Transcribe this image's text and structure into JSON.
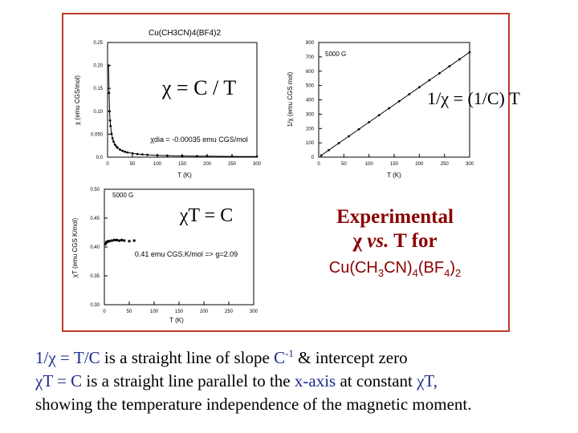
{
  "chart_data": [
    {
      "type": "scatter",
      "title": "Cu(CH3CN)4(BF4)2",
      "xlabel": "T (K)",
      "ylabel": "χ (emu CGS/mol)",
      "xlim": [
        0,
        300
      ],
      "ylim": [
        0,
        0.25
      ],
      "xticks": [
        "0",
        "50",
        "100",
        "150",
        "200",
        "250",
        "300"
      ],
      "yticks": [
        "0.0",
        "0.050",
        "0.10",
        "0.15",
        "0.20",
        "0.25"
      ],
      "formula": "χ = C / T",
      "annotation": "χdia = -0.00035 emu CGS/mol",
      "x": [
        2,
        3,
        4,
        5,
        6,
        8,
        10,
        12,
        15,
        18,
        20,
        25,
        30,
        35,
        40,
        50,
        60,
        70,
        80,
        100,
        120,
        150,
        180,
        200,
        250,
        300
      ],
      "y": [
        0.2,
        0.14,
        0.1,
        0.08,
        0.068,
        0.051,
        0.041,
        0.034,
        0.027,
        0.023,
        0.0205,
        0.0164,
        0.0137,
        0.0117,
        0.0103,
        0.0082,
        0.0068,
        0.0059,
        0.0051,
        0.0041,
        0.0034,
        0.0027,
        0.0023,
        0.0021,
        0.0016,
        0.0014
      ]
    },
    {
      "type": "scatter",
      "xlabel": "T (K)",
      "ylabel": "1/χ (emu CGS mol)",
      "legend": "5000 G",
      "xlim": [
        0,
        300
      ],
      "ylim": [
        0,
        800
      ],
      "xticks": [
        "0",
        "50",
        "100",
        "150",
        "200",
        "250",
        "300"
      ],
      "yticks": [
        "0",
        "100",
        "200",
        "300",
        "400",
        "500",
        "600",
        "700",
        "800"
      ],
      "formula": "1/χ = (1/C) T",
      "x": [
        5,
        20,
        40,
        60,
        80,
        100,
        120,
        140,
        160,
        180,
        200,
        220,
        240,
        260,
        280,
        300
      ],
      "y": [
        12,
        49,
        98,
        146,
        195,
        244,
        293,
        341,
        390,
        439,
        488,
        537,
        585,
        634,
        683,
        732
      ]
    },
    {
      "type": "scatter",
      "xlabel": "T (K)",
      "ylabel": "χT (emu CGS K/mol)",
      "legend": "5000 G",
      "xlim": [
        0,
        300
      ],
      "ylim": [
        0.3,
        0.5
      ],
      "xticks": [
        "0",
        "50",
        "100",
        "150",
        "200",
        "250",
        "300"
      ],
      "yticks": [
        "0.30",
        "0.35",
        "0.40",
        "0.45",
        "0.50"
      ],
      "formula": "χT = C",
      "annotation": "0.41 emu CGS.K/mol => g=2.09",
      "x": [
        2,
        4,
        6,
        8,
        10,
        15,
        20,
        25,
        30,
        35,
        40,
        50,
        60
      ],
      "y": [
        0.405,
        0.408,
        0.409,
        0.41,
        0.41,
        0.411,
        0.412,
        0.412,
        0.411,
        0.412,
        0.411,
        0.41,
        0.411
      ]
    }
  ],
  "side_title": {
    "line1": "Experimental",
    "line2_sym": "χ",
    "line2_vs": "vs.",
    "line2_rest": "T for",
    "line3_a": "Cu(CH",
    "line3_sub1": "3",
    "line3_b": "CN)",
    "line3_sub2": "4",
    "line3_c": "(BF",
    "line3_sub3": "4",
    "line3_d": ")",
    "line3_sub4": "2"
  },
  "notes": {
    "line1_a": "1/χ = T/C",
    "line1_b": " is a straight line of slope ",
    "line1_c": "C",
    "line1_sup": "-1",
    "line1_d": " & intercept zero",
    "line2_a": "χT = C",
    "line2_b": " is a straight line parallel to the ",
    "line2_c": "x-axis",
    "line2_d": " at constant ",
    "line2_e": "χT,",
    "line3": "showing the temperature independence of the magnetic moment."
  }
}
